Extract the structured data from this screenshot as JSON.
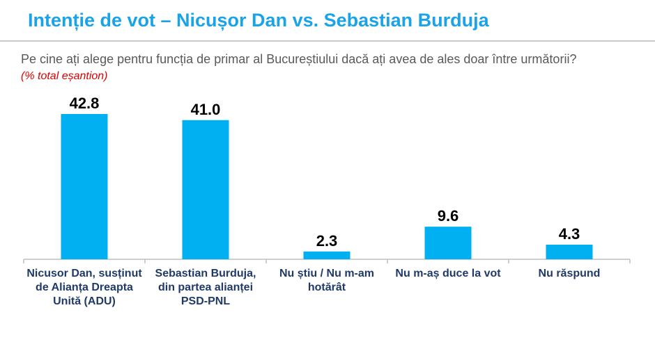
{
  "header": {
    "title": "Intenție de vot – Nicușor Dan vs. Sebastian Burduja",
    "question": "Pe cine ați alege pentru funcția de primar al Bucureștiului dacă ați avea de ales doar între următorii?",
    "note": "(% total eșantion)"
  },
  "chart_data": {
    "type": "bar",
    "categories": [
      "Nicusor Dan, susținut de Alianța Dreapta Unită (ADU)",
      "Sebastian Burduja, din partea alianței PSD-PNL",
      "Nu știu / Nu m-am hotărât",
      "Nu m-aș duce la vot",
      "Nu răspund"
    ],
    "value_labels": [
      "42.8",
      "41.0",
      "2.3",
      "9.6",
      "4.3"
    ],
    "values": [
      42.8,
      41.0,
      2.3,
      9.6,
      4.3
    ],
    "title": "",
    "xlabel": "",
    "ylabel": "",
    "ylim": [
      0,
      42.8
    ],
    "grid": false,
    "legend": "none",
    "colors": {
      "bar": "#00b0f0",
      "axis": "#bfbfbf"
    }
  }
}
